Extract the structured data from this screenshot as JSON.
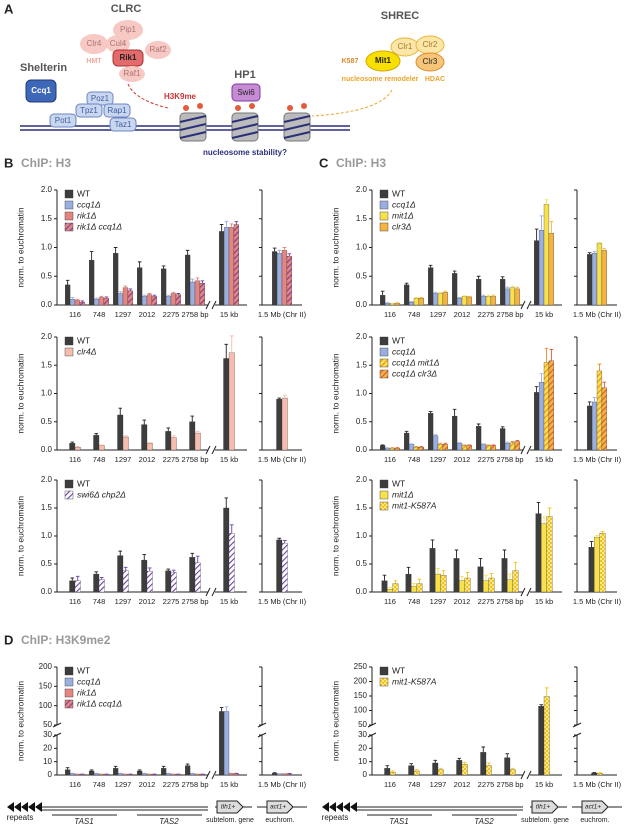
{
  "diagram": {
    "label": "A",
    "clrc": {
      "title": "CLRC",
      "pip1": "Pip1",
      "clr4": "Clr4",
      "cul4": "Cul4",
      "raf2": "Raf2",
      "rik1": "Rik1",
      "raf1": "Raf1",
      "hmt": "HMT"
    },
    "shrec": {
      "title": "SHREC",
      "k587": "K587",
      "mit1": "Mit1",
      "clr1": "Clr1",
      "clr2": "Clr2",
      "clr3": "Clr3",
      "remodeler": "nucleosome remodeler",
      "hdac": "HDAC"
    },
    "shelterin": {
      "title": "Shelterin",
      "ccq1": "Ccq1",
      "poz1": "Poz1",
      "tpz1": "Tpz1",
      "rap1": "Rap1",
      "pot1": "Pot1",
      "taz1": "Taz1"
    },
    "h3k9me": "H3K9me",
    "hp1": {
      "title": "HP1",
      "swi6": "Swi6"
    },
    "stability": "nucleosome stability?"
  },
  "gene_map": {
    "repeats": "repeats",
    "tas1": "TAS1",
    "tas2": "TAS2",
    "tlh1": "tlh1+",
    "subtelom": "subtelom. gene",
    "act1": "act1+",
    "euchrom": "euchrom."
  },
  "chart_data": [
    {
      "type": "bar",
      "panel": "B",
      "title": "ChIP: H3",
      "ylabel": "norm. to euchromatin",
      "categories": [
        "116",
        "748",
        "1297",
        "2012",
        "2275",
        "2758 bp",
        "15 kb",
        "1.5 Mb (Chr II)"
      ],
      "ylim": [
        0,
        2.0
      ],
      "yticks": [
        {
          "value": 0,
          "label": "0.0"
        },
        {
          "value": 0.5,
          "label": "0.5"
        },
        {
          "value": 1.0,
          "label": "1.0"
        },
        {
          "value": 1.5,
          "label": "1.5"
        },
        {
          "value": 2.0,
          "label": "2.0"
        }
      ],
      "series": [
        {
          "name": "WT",
          "color": "#3d3d3d",
          "values": [
            0.35,
            0.78,
            0.9,
            0.65,
            0.63,
            0.87,
            1.28,
            0.93
          ],
          "errors": [
            0.08,
            0.15,
            0.1,
            0.1,
            0.05,
            0.08,
            0.12,
            0.06
          ]
        },
        {
          "name": "ccq1Δ",
          "color": "#9aaee0",
          "values": [
            0.1,
            0.1,
            0.2,
            0.15,
            0.15,
            0.4,
            1.35,
            0.9
          ],
          "errors": [
            0.03,
            0.02,
            0.03,
            0.02,
            0.02,
            0.05,
            0.1,
            0.05
          ]
        },
        {
          "name": "rik1Δ",
          "color": "#e58580",
          "values": [
            0.08,
            0.13,
            0.3,
            0.18,
            0.2,
            0.42,
            1.35,
            0.95
          ],
          "errors": [
            0.02,
            0.02,
            0.03,
            0.02,
            0.02,
            0.05,
            0.06,
            0.05
          ]
        },
        {
          "name": "rik1Δ ccq1Δ",
          "color": "#e58580",
          "pattern": "hatch",
          "color2": "#7a3e9d",
          "values": [
            0.05,
            0.12,
            0.25,
            0.15,
            0.18,
            0.38,
            1.4,
            0.85
          ],
          "errors": [
            0.02,
            0.02,
            0.03,
            0.02,
            0.02,
            0.04,
            0.05,
            0.04
          ]
        }
      ]
    },
    {
      "type": "bar",
      "ylabel": "norm. to euchromatin",
      "categories": [
        "116",
        "748",
        "1297",
        "2012",
        "2275",
        "2758 bp",
        "15 kb",
        "1.5 Mb (Chr II)"
      ],
      "ylim": [
        0,
        2.0
      ],
      "yticks": [
        {
          "value": 0,
          "label": "0.0"
        },
        {
          "value": 0.5,
          "label": "0.5"
        },
        {
          "value": 1.0,
          "label": "1.0"
        },
        {
          "value": 1.5,
          "label": "1.5"
        },
        {
          "value": 2.0,
          "label": "2.0"
        }
      ],
      "series": [
        {
          "name": "WT",
          "color": "#3d3d3d",
          "values": [
            0.12,
            0.26,
            0.62,
            0.45,
            0.33,
            0.5,
            1.62,
            0.9
          ],
          "errors": [
            0.02,
            0.03,
            0.12,
            0.08,
            0.06,
            0.1,
            0.25,
            0.02
          ]
        },
        {
          "name": "clr4Δ",
          "color": "#f6bcae",
          "values": [
            0.05,
            0.08,
            0.23,
            0.12,
            0.22,
            0.3,
            1.72,
            0.92
          ],
          "errors": [
            0.01,
            0.01,
            0.02,
            0.01,
            0.03,
            0.03,
            0.3,
            0.05
          ]
        }
      ]
    },
    {
      "type": "bar",
      "ylabel": "norm. to euchromatin",
      "categories": [
        "116",
        "748",
        "1297",
        "2012",
        "2275",
        "2758 bp",
        "15 kb",
        "1.5 Mb (Chr II)"
      ],
      "ylim": [
        0,
        2.0
      ],
      "yticks": [
        {
          "value": 0,
          "label": "0.0"
        },
        {
          "value": 0.5,
          "label": "0.5"
        },
        {
          "value": 1.0,
          "label": "1.0"
        },
        {
          "value": 1.5,
          "label": "1.5"
        },
        {
          "value": 2.0,
          "label": "2.0"
        }
      ],
      "series": [
        {
          "name": "WT",
          "color": "#3d3d3d",
          "values": [
            0.2,
            0.32,
            0.65,
            0.57,
            0.38,
            0.62,
            1.5,
            0.93
          ],
          "errors": [
            0.05,
            0.04,
            0.08,
            0.1,
            0.03,
            0.07,
            0.18,
            0.03
          ]
        },
        {
          "name": "swi6Δ chp2Δ",
          "color": "#ffffff",
          "pattern": "hatch",
          "color2": "#6c3fae",
          "values": [
            0.2,
            0.22,
            0.38,
            0.37,
            0.35,
            0.52,
            1.05,
            0.87
          ],
          "errors": [
            0.08,
            0.04,
            0.06,
            0.06,
            0.04,
            0.12,
            0.15,
            0.05
          ]
        }
      ]
    },
    {
      "type": "bar",
      "panel": "C",
      "title": "ChIP: H3",
      "ylabel": "norm. to euchromatin",
      "categories": [
        "116",
        "748",
        "1297",
        "2012",
        "2275",
        "2758 bp",
        "15 kb",
        "1.5 Mb (Chr II)"
      ],
      "ylim": [
        0,
        2.0
      ],
      "yticks": [
        {
          "value": 0,
          "label": "0.0"
        },
        {
          "value": 0.5,
          "label": "0.5"
        },
        {
          "value": 1.0,
          "label": "1.0"
        },
        {
          "value": 1.5,
          "label": "1.5"
        },
        {
          "value": 2.0,
          "label": "2.0"
        }
      ],
      "series": [
        {
          "name": "WT",
          "color": "#3d3d3d",
          "values": [
            0.17,
            0.35,
            0.65,
            0.55,
            0.45,
            0.45,
            1.12,
            0.88
          ],
          "errors": [
            0.07,
            0.03,
            0.04,
            0.04,
            0.05,
            0.04,
            0.2,
            0.03
          ]
        },
        {
          "name": "ccq1Δ",
          "color": "#9aaee0",
          "values": [
            0.03,
            0.05,
            0.2,
            0.12,
            0.15,
            0.28,
            1.3,
            0.9
          ],
          "errors": [
            0.01,
            0.01,
            0.02,
            0.01,
            0.02,
            0.03,
            0.25,
            0.03
          ]
        },
        {
          "name": "mit1Δ",
          "color": "#f7e14c",
          "values": [
            0.02,
            0.12,
            0.2,
            0.15,
            0.15,
            0.3,
            1.75,
            1.07
          ],
          "errors": [
            0.01,
            0.01,
            0.02,
            0.01,
            0.02,
            0.03,
            0.08,
            0.02
          ]
        },
        {
          "name": "clr3Δ",
          "color": "#f4b443",
          "values": [
            0.03,
            0.12,
            0.22,
            0.14,
            0.15,
            0.28,
            1.25,
            0.95
          ],
          "errors": [
            0.01,
            0.01,
            0.02,
            0.01,
            0.02,
            0.03,
            0.2,
            0.03
          ]
        }
      ]
    },
    {
      "type": "bar",
      "ylabel": "norm. to euchromatin",
      "categories": [
        "116",
        "748",
        "1297",
        "2012",
        "2275",
        "2758 bp",
        "15 kb",
        "1.5 Mb (Chr II)"
      ],
      "ylim": [
        0,
        2.0
      ],
      "yticks": [
        {
          "value": 0,
          "label": "0.0"
        },
        {
          "value": 0.5,
          "label": "0.5"
        },
        {
          "value": 1.0,
          "label": "1.0"
        },
        {
          "value": 1.5,
          "label": "1.5"
        },
        {
          "value": 2.0,
          "label": "2.0"
        }
      ],
      "series": [
        {
          "name": "WT",
          "color": "#3d3d3d",
          "values": [
            0.08,
            0.3,
            0.65,
            0.6,
            0.42,
            0.38,
            1.02,
            0.78
          ],
          "errors": [
            0.01,
            0.03,
            0.03,
            0.12,
            0.04,
            0.03,
            0.1,
            0.07
          ]
        },
        {
          "name": "ccq1Δ",
          "color": "#9aaee0",
          "values": [
            0.03,
            0.1,
            0.25,
            0.12,
            0.1,
            0.12,
            1.2,
            0.85
          ],
          "errors": [
            0.01,
            0.01,
            0.02,
            0.01,
            0.01,
            0.02,
            0.15,
            0.08
          ]
        },
        {
          "name": "ccq1Δ mit1Δ",
          "color": "#f7e14c",
          "pattern": "hatch",
          "color2": "#f08a2a",
          "values": [
            0.03,
            0.05,
            0.1,
            0.08,
            0.08,
            0.13,
            1.55,
            1.4
          ],
          "errors": [
            0.01,
            0.01,
            0.02,
            0.01,
            0.01,
            0.02,
            0.25,
            0.12
          ]
        },
        {
          "name": "ccq1Δ clr3Δ",
          "color": "#f4b443",
          "pattern": "hatch",
          "color2": "#e0533a",
          "values": [
            0.03,
            0.05,
            0.1,
            0.08,
            0.08,
            0.15,
            1.58,
            1.1
          ],
          "errors": [
            0.01,
            0.01,
            0.02,
            0.01,
            0.01,
            0.02,
            0.2,
            0.1
          ]
        }
      ]
    },
    {
      "type": "bar",
      "ylabel": "norm. to euchromatin",
      "categories": [
        "116",
        "748",
        "1297",
        "2012",
        "2275",
        "2758 bp",
        "15 kb",
        "1.5 Mb (Chr II)"
      ],
      "ylim": [
        0,
        2.0
      ],
      "yticks": [
        {
          "value": 0,
          "label": "0.0"
        },
        {
          "value": 0.5,
          "label": "0.5"
        },
        {
          "value": 1.0,
          "label": "1.0"
        },
        {
          "value": 1.5,
          "label": "1.5"
        },
        {
          "value": 2.0,
          "label": "2.0"
        }
      ],
      "series": [
        {
          "name": "WT",
          "color": "#3d3d3d",
          "values": [
            0.2,
            0.32,
            0.78,
            0.6,
            0.45,
            0.6,
            1.4,
            0.8
          ],
          "errors": [
            0.1,
            0.12,
            0.15,
            0.15,
            0.15,
            0.15,
            0.2,
            0.1
          ]
        },
        {
          "name": "mit1Δ",
          "color": "#f7e14c",
          "values": [
            0.05,
            0.1,
            0.32,
            0.2,
            0.2,
            0.22,
            1.22,
            0.98
          ],
          "errors": [
            0.03,
            0.05,
            0.1,
            0.08,
            0.1,
            0.1,
            0.12,
            0.03
          ]
        },
        {
          "name": "mit1-K587A",
          "color": "#fbe98a",
          "pattern": "check",
          "color2": "#f3c21f",
          "values": [
            0.15,
            0.15,
            0.3,
            0.25,
            0.25,
            0.38,
            1.35,
            1.05
          ],
          "errors": [
            0.05,
            0.08,
            0.08,
            0.1,
            0.08,
            0.15,
            0.15,
            0.03
          ]
        }
      ]
    },
    {
      "type": "bar",
      "panel": "D",
      "title": "ChIP: H3K9me2",
      "ylabel": "norm. to euchromatin",
      "categories": [
        "116",
        "748",
        "1297",
        "2012",
        "2275",
        "2758 bp",
        "15 kb",
        "1.5 Mb (Chr II)"
      ],
      "ylim": [
        0,
        200
      ],
      "ybreak": [
        30,
        50
      ],
      "yticks": [
        0,
        10,
        20,
        30,
        50,
        100,
        150,
        200
      ],
      "series": [
        {
          "name": "WT",
          "color": "#3d3d3d",
          "values": [
            4,
            3,
            5,
            3,
            5,
            7,
            85,
            1.3
          ],
          "errors": [
            1.5,
            0.8,
            1.5,
            0.8,
            1.5,
            1.2,
            10,
            0.4
          ]
        },
        {
          "name": "ccq1Δ",
          "color": "#9aaee0",
          "values": [
            1,
            1,
            1,
            1,
            1,
            1,
            85,
            0.9
          ],
          "errors": [
            0.3,
            0.3,
            0.3,
            0.3,
            0.3,
            0.3,
            12,
            0.2
          ]
        },
        {
          "name": "rik1Δ",
          "color": "#e58580",
          "values": [
            0.5,
            0.5,
            0.5,
            0.5,
            0.5,
            0.5,
            1,
            0.8
          ],
          "errors": [
            0.2,
            0.2,
            0.2,
            0.2,
            0.2,
            0.2,
            0.3,
            0.2
          ]
        },
        {
          "name": "rik1Δ ccq1Δ",
          "color": "#e58580",
          "pattern": "hatch",
          "color2": "#7a3e9d",
          "values": [
            0.5,
            0.5,
            0.5,
            0.5,
            0.5,
            0.5,
            1,
            1.0
          ],
          "errors": [
            0.2,
            0.2,
            0.2,
            0.2,
            0.2,
            0.2,
            0.3,
            0.2
          ]
        }
      ]
    },
    {
      "type": "bar",
      "ylabel": "norm. to euchromatin",
      "categories": [
        "116",
        "748",
        "1297",
        "2012",
        "2275",
        "2758 bp",
        "15 kb",
        "1.5 Mb (Chr II)"
      ],
      "ylim": [
        0,
        250
      ],
      "ybreak": [
        30,
        50
      ],
      "yticks": [
        0,
        10,
        20,
        30,
        50,
        100,
        150,
        200,
        250
      ],
      "series": [
        {
          "name": "WT",
          "color": "#3d3d3d",
          "values": [
            5,
            7,
            9,
            11,
            17,
            13,
            115,
            1.5
          ],
          "errors": [
            2,
            1.5,
            2,
            1.5,
            4,
            3,
            5,
            0.3
          ]
        },
        {
          "name": "mit1-K587A",
          "color": "#fbe98a",
          "pattern": "check",
          "color2": "#f3c21f",
          "values": [
            2,
            3,
            4,
            8,
            7,
            4,
            148,
            1.4
          ],
          "errors": [
            1,
            1,
            1,
            1.5,
            2,
            1,
            30,
            0.3
          ]
        }
      ]
    }
  ]
}
